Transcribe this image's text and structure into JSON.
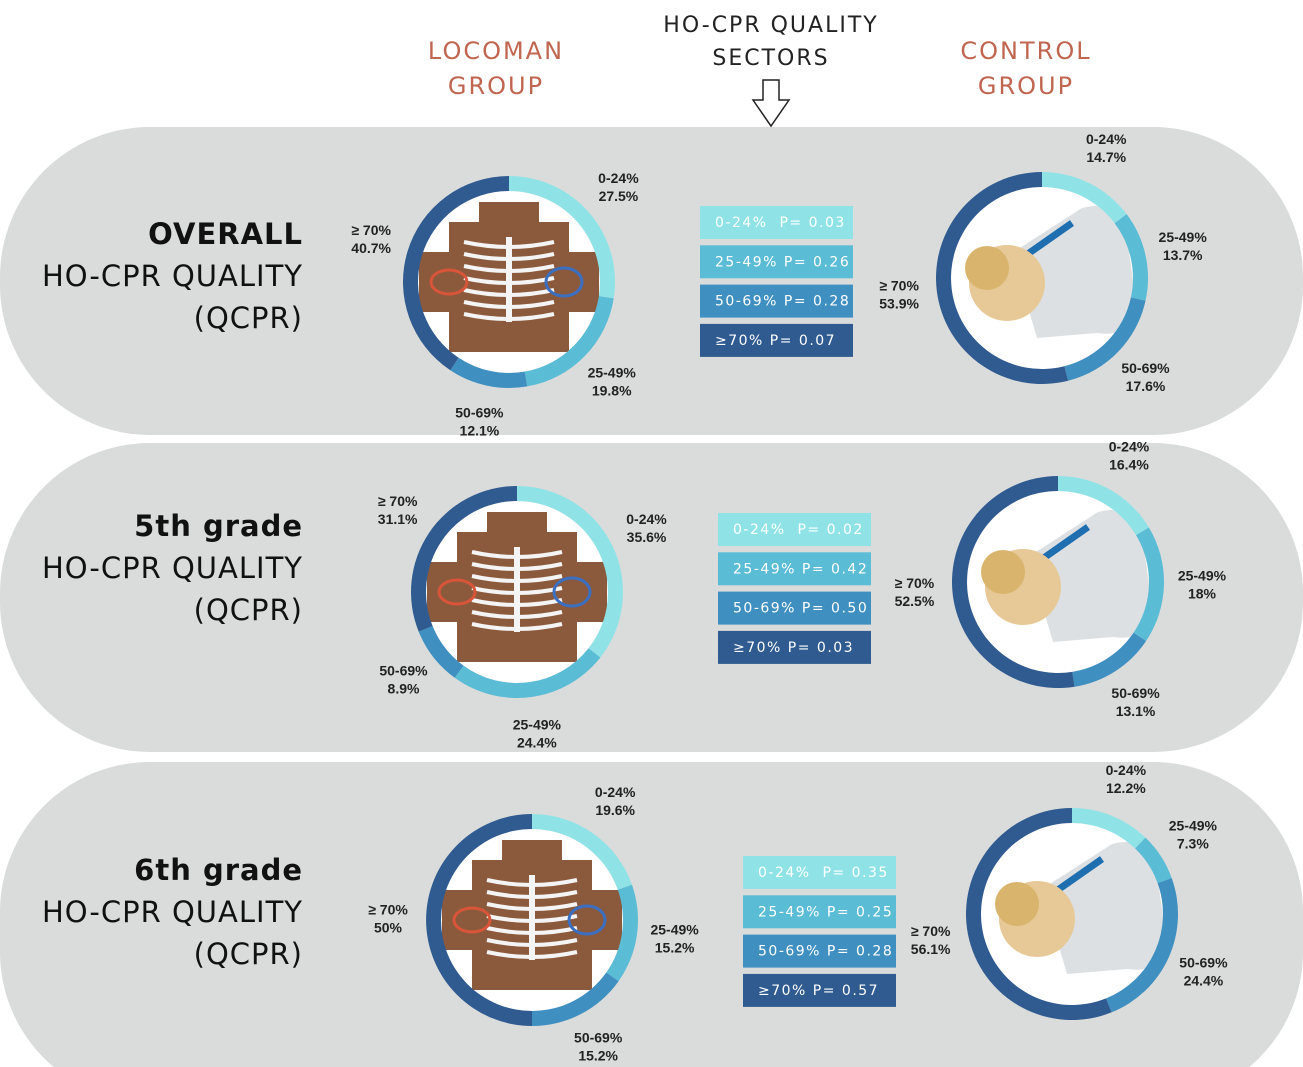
{
  "header": {
    "left_group": [
      "LOCOMAN",
      "GROUP"
    ],
    "center": [
      "HO-CPR QUALITY",
      "SECTORS"
    ],
    "right_group": [
      "CONTROL",
      "GROUP"
    ]
  },
  "rows": [
    {
      "title": "OVERALL",
      "subtitle": [
        "HO-CPR QUALITY",
        "(QCPR)"
      ],
      "p_values": [
        "0-24%  P= 0.03",
        "25-49% P= 0.26",
        "50-69% P= 0.28",
        "≥70% P= 0.07"
      ]
    },
    {
      "title": "5th grade",
      "subtitle": [
        "HO-CPR QUALITY",
        "(QCPR)"
      ],
      "p_values": [
        "0-24%  P= 0.02",
        "25-49% P= 0.42",
        "50-69% P= 0.50",
        "≥70% P= 0.03"
      ]
    },
    {
      "title": "6th grade",
      "subtitle": [
        "HO-CPR QUALITY",
        "(QCPR)"
      ],
      "p_values": [
        "0-24%  P= 0.35",
        "25-49% P= 0.25",
        "50-69% P= 0.28",
        "≥70% P= 0.57"
      ]
    }
  ],
  "chart_data": [
    {
      "type": "donut",
      "categories": [
        "0-24%",
        "25-49%",
        "50-69%",
        "≥ 70%"
      ],
      "values": [
        27.5,
        19.8,
        12.1,
        40.7
      ],
      "value_labels": [
        "27.5%",
        "19.8%",
        "12.1%",
        "40.7%"
      ],
      "colors": [
        "#8fe3e6",
        "#5bbcd6",
        "#3f8fc0",
        "#305b90"
      ]
    },
    {
      "type": "donut",
      "categories": [
        "0-24%",
        "25-49%",
        "50-69%",
        "≥ 70%"
      ],
      "values": [
        14.7,
        13.7,
        17.6,
        53.9
      ],
      "value_labels": [
        "14.7%",
        "13.7%",
        "17.6%",
        "53.9%"
      ],
      "colors": [
        "#8fe3e6",
        "#5bbcd6",
        "#3f8fc0",
        "#305b90"
      ]
    },
    {
      "type": "donut",
      "categories": [
        "0-24%",
        "25-49%",
        "50-69%",
        "≥ 70%"
      ],
      "values": [
        35.6,
        24.4,
        8.9,
        31.1
      ],
      "value_labels": [
        "35.6%",
        "24.4%",
        "8.9%",
        "31.1%"
      ],
      "colors": [
        "#8fe3e6",
        "#5bbcd6",
        "#3f8fc0",
        "#305b90"
      ]
    },
    {
      "type": "donut",
      "categories": [
        "0-24%",
        "25-49%",
        "50-69%",
        "≥ 70%"
      ],
      "values": [
        16.4,
        18,
        13.1,
        52.5
      ],
      "value_labels": [
        "16.4%",
        "18%",
        "13.1%",
        "52.5%"
      ],
      "colors": [
        "#8fe3e6",
        "#5bbcd6",
        "#3f8fc0",
        "#305b90"
      ]
    },
    {
      "type": "donut",
      "categories": [
        "0-24%",
        "25-49%",
        "50-69%",
        "≥ 70%"
      ],
      "values": [
        19.6,
        15.2,
        15.2,
        50
      ],
      "value_labels": [
        "19.6%",
        "15.2%",
        "15.2%",
        "50%"
      ],
      "colors": [
        "#8fe3e6",
        "#5bbcd6",
        "#3f8fc0",
        "#305b90"
      ]
    },
    {
      "type": "donut",
      "categories": [
        "0-24%",
        "25-49%",
        "50-69%",
        "≥ 70%"
      ],
      "values": [
        12.2,
        7.3,
        24.4,
        56.1
      ],
      "value_labels": [
        "12.2%",
        "7.3%",
        "24.4%",
        "56.1%"
      ],
      "colors": [
        "#8fe3e6",
        "#5bbcd6",
        "#3f8fc0",
        "#305b90"
      ]
    }
  ]
}
